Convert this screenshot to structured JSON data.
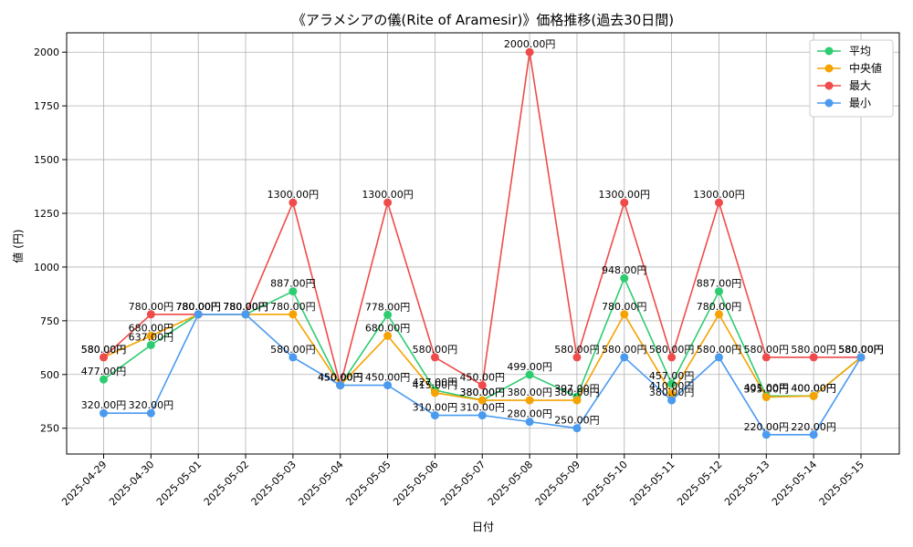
{
  "chart_data": {
    "type": "line",
    "title": "《アラメシアの儀(Rite of Aramesir)》価格推移(過去30日間)",
    "xlabel": "日付",
    "ylabel": "値 (円)",
    "ylim": [
      130,
      2090
    ],
    "yticks": [
      250,
      500,
      750,
      1000,
      1250,
      1500,
      1750,
      2000
    ],
    "grid": true,
    "legend_position": "top-right",
    "label_suffix": "円",
    "x": [
      "2025-04-29",
      "2025-04-30",
      "2025-05-01",
      "2025-05-02",
      "2025-05-03",
      "2025-05-04",
      "2025-05-05",
      "2025-05-06",
      "2025-05-07",
      "2025-05-08",
      "2025-05-09",
      "2025-05-10",
      "2025-05-11",
      "2025-05-12",
      "2025-05-13",
      "2025-05-14",
      "2025-05-15"
    ],
    "series": [
      {
        "name": "平均",
        "color": "#2ecc71",
        "values": [
          477,
          637,
          780,
          780,
          887,
          450,
          778,
          427,
          380,
          499,
          397,
          948,
          457,
          887,
          401,
          400,
          580
        ]
      },
      {
        "name": " 中央値",
        "color": "#f5a300",
        "values": [
          580,
          680,
          780,
          780,
          780,
          450,
          680,
          415,
          380,
          380,
          380,
          780,
          410,
          780,
          395,
          400,
          580
        ]
      },
      {
        "name": "最大",
        "color": "#ef4b4b",
        "values": [
          580,
          780,
          780,
          780,
          1300,
          450,
          1300,
          580,
          450,
          2000,
          580,
          1300,
          580,
          1300,
          580,
          580,
          580
        ]
      },
      {
        "name": "最小",
        "color": "#4a9af0",
        "values": [
          320,
          320,
          780,
          780,
          580,
          450,
          450,
          310,
          310,
          280,
          250,
          580,
          380,
          580,
          220,
          220,
          580
        ]
      }
    ]
  }
}
